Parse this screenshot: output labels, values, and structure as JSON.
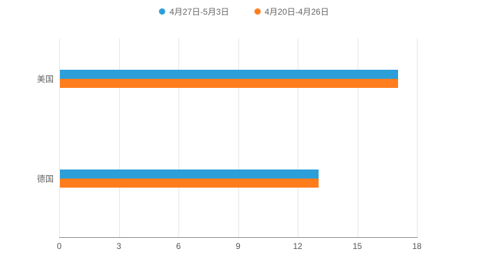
{
  "legend": {
    "items": [
      {
        "label": "4月27日-5月3日",
        "color": "#2d9fd8"
      },
      {
        "label": "4月20日-4月26日",
        "color": "#ff7d1c"
      }
    ]
  },
  "chart_data": {
    "type": "bar",
    "orientation": "horizontal",
    "title": "",
    "xlabel": "",
    "ylabel": "",
    "categories": [
      "美国",
      "德国"
    ],
    "series": [
      {
        "name": "4月27日-5月3日",
        "color": "#2d9fd8",
        "values": [
          17,
          13
        ]
      },
      {
        "name": "4月20日-4月26日",
        "color": "#ff7d1c",
        "values": [
          17,
          13
        ]
      }
    ],
    "xlim": [
      0,
      18
    ],
    "xticks": [
      0,
      3,
      6,
      9,
      12,
      15,
      18
    ],
    "grid": true,
    "legend_position": "top",
    "background": "#ffffff",
    "gridline_color": "#e6e6e6",
    "axis_color": "#8a8a8a",
    "label_color": "#666666"
  }
}
